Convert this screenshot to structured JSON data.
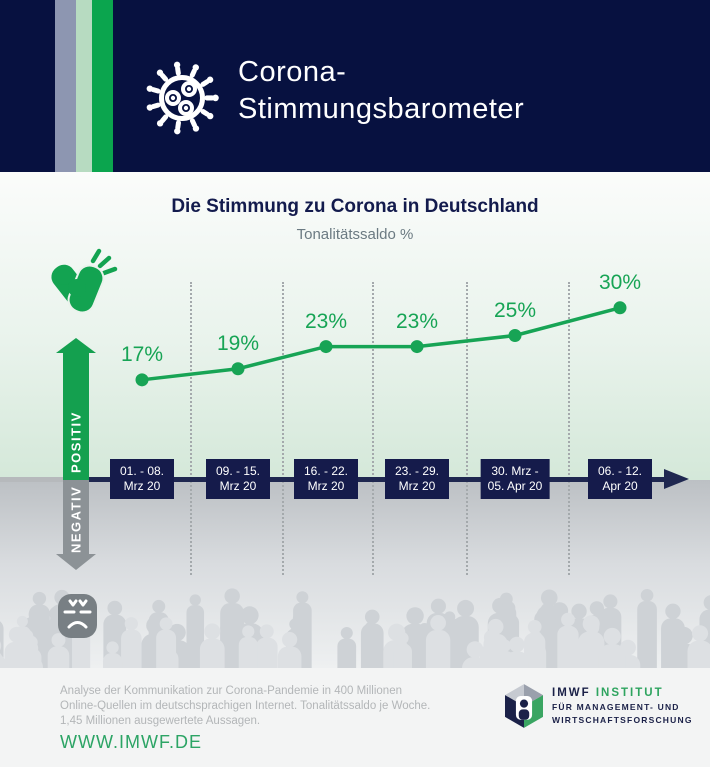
{
  "header": {
    "title_line1": "Corona-",
    "title_line2": "Stimmungsbarometer"
  },
  "chart_data": {
    "type": "line",
    "title": "Die Stimmung zu Corona in Deutschland",
    "subtitle": "Tonalitätssaldo %",
    "categories": [
      "01. - 08. Mrz 20",
      "09. - 15. Mrz 20",
      "16. - 22. Mrz 20",
      "23. - 29. Mrz 20",
      "30. Mrz - 05. Apr 20",
      "06. - 12. Apr 20"
    ],
    "category_lines": [
      [
        "01. - 08.",
        "Mrz 20"
      ],
      [
        "09. - 15.",
        "Mrz 20"
      ],
      [
        "16. - 22.",
        "Mrz 20"
      ],
      [
        "23. - 29.",
        "Mrz 20"
      ],
      [
        "30. Mrz -",
        "05. Apr 20"
      ],
      [
        "06. - 12.",
        "Apr 20"
      ]
    ],
    "values": [
      17,
      19,
      23,
      23,
      25,
      30
    ],
    "data_labels": [
      "17%",
      "19%",
      "23%",
      "23%",
      "25%",
      "30%"
    ],
    "unit": "%",
    "axis_positive_label": "POSITIV",
    "axis_negative_label": "NEGATIV",
    "grid": "dotted-vertical-between-categories",
    "baseline_value": 0,
    "line_color": "#17a455"
  },
  "footer": {
    "note_lines": [
      "Analyse der Kommunikation zur Corona-Pandemie in 400 Millionen",
      "Online-Quellen im deutschsprachigen Internet. Tonalitätssaldo je Woche.",
      "1,45 Millionen ausgewertete Aussagen."
    ],
    "website": "WWW.IMWF.DE",
    "logo": {
      "name_bold": "IMWF",
      "name_green": "INSTITUT",
      "line2": "FÜR MANAGEMENT- UND",
      "line3": "WIRTSCHAFTSFORSCHUNG"
    }
  },
  "colors": {
    "header_navy": "#071140",
    "stripe_grayblue": "#8d96b1",
    "stripe_lightgreen": "#b7dbc1",
    "stripe_green": "#0ba54e",
    "chart_green": "#17a455",
    "axis_navy": "#1f2750",
    "datebox_navy": "#151b4b",
    "negative_gray": "#8c9296",
    "website_green": "#2ca465"
  }
}
